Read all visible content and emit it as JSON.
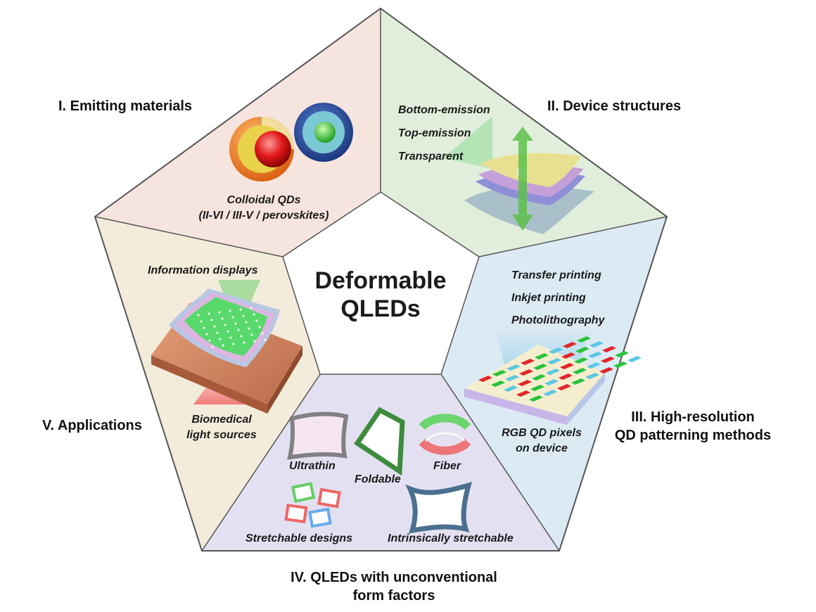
{
  "center_title": [
    "Deformable",
    "QLEDs"
  ],
  "sections": {
    "emitting_materials": {
      "title": "I. Emitting materials",
      "items": [
        "Colloidal QDs",
        "(II-VI / III-V / perovskites)"
      ],
      "color": "#f6e4df"
    },
    "device_structures": {
      "title": "II. Device structures",
      "items": [
        "Bottom-emission",
        "Top-emission",
        "Transparent"
      ],
      "color": "#e2eedc"
    },
    "patterning": {
      "title": [
        "III. High-resolution",
        "QD patterning methods"
      ],
      "items": [
        "Transfer printing",
        "Inkjet printing",
        "Photolithography"
      ],
      "caption": [
        "RGB QD pixels",
        "on device"
      ],
      "color": "#dceaf4"
    },
    "form_factors": {
      "title": [
        "IV. QLEDs with unconventional",
        "form factors"
      ],
      "items": [
        "Ultrathin",
        "Foldable",
        "Fiber",
        "Stretchable designs",
        "Intrinsically stretchable"
      ],
      "color": "#e3e1f1"
    },
    "applications": {
      "title": "V. Applications",
      "items": [
        "Information displays",
        "Biomedical",
        "light sources"
      ],
      "color": "#f4ecdb"
    }
  }
}
